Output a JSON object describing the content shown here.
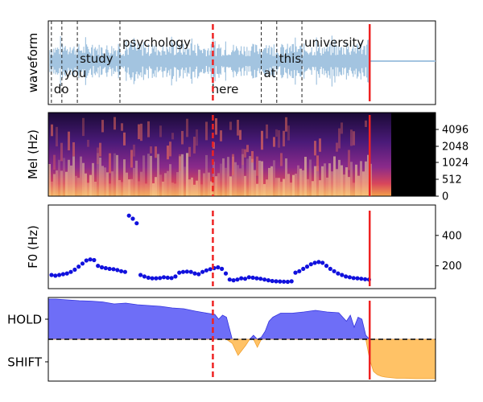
{
  "chart_data": [
    {
      "panel": "waveform",
      "type": "area",
      "ylabel": "waveform",
      "xlim": [
        0,
        100
      ],
      "speech_end": 83,
      "words": [
        {
          "text": "do",
          "start": 0.8,
          "row": "low"
        },
        {
          "text": "you",
          "start": 3.5,
          "row": "mid"
        },
        {
          "text": "study",
          "start": 7.5,
          "row": "mid-high"
        },
        {
          "text": "psychology",
          "start": 18.5,
          "row": "high"
        },
        {
          "text": "here",
          "start": 41.5,
          "row": "low"
        },
        {
          "text": "at",
          "start": 55.0,
          "row": "mid"
        },
        {
          "text": "this",
          "start": 59.0,
          "row": "mid-high"
        },
        {
          "text": "university",
          "start": 65.5,
          "row": "high"
        }
      ],
      "word_boundaries": [
        0.8,
        3.5,
        7.5,
        18.5,
        55.0,
        59.0,
        65.5
      ]
    },
    {
      "panel": "mel",
      "type": "heatmap",
      "ylabel": "Mel (Hz)",
      "yticks": [
        "0",
        "512",
        "1024",
        "2048",
        "4096"
      ],
      "xlim": [
        0,
        100
      ],
      "speech_end": 83
    },
    {
      "panel": "f0",
      "type": "scatter",
      "ylabel": "F0 (Hz)",
      "yticks": [
        200,
        400
      ],
      "ylim": [
        50,
        600
      ],
      "x": [
        0,
        1,
        2,
        3,
        4,
        5,
        6,
        7,
        8,
        9,
        10,
        11,
        12,
        13,
        14,
        15,
        16,
        17,
        18,
        19,
        20,
        21,
        22,
        23,
        24,
        25,
        26,
        27,
        28,
        29,
        30,
        31,
        32,
        33,
        34,
        35,
        36,
        37,
        38,
        39,
        40,
        41,
        42,
        43,
        44,
        45,
        46,
        47,
        48,
        49,
        50,
        51,
        52,
        53,
        54,
        55,
        56,
        57,
        58,
        59,
        60,
        61,
        62,
        63,
        64,
        65,
        66,
        67,
        68,
        69,
        70,
        71,
        72,
        73,
        74,
        75,
        76,
        77,
        78,
        79,
        80,
        81,
        82
      ],
      "y": [
        140,
        135,
        140,
        145,
        150,
        160,
        175,
        195,
        215,
        235,
        242,
        238,
        200,
        190,
        185,
        180,
        178,
        172,
        165,
        160,
        530,
        510,
        480,
        140,
        130,
        122,
        118,
        118,
        120,
        125,
        122,
        120,
        130,
        155,
        160,
        162,
        160,
        150,
        145,
        160,
        170,
        178,
        185,
        190,
        180,
        150,
        110,
        105,
        110,
        118,
        115,
        125,
        122,
        118,
        115,
        110,
        105,
        100,
        98,
        97,
        96,
        95,
        98,
        155,
        165,
        180,
        195,
        210,
        220,
        225,
        220,
        200,
        180,
        165,
        150,
        140,
        130,
        125,
        120,
        118,
        115,
        112,
        110
      ],
      "segments": [
        [
          0,
          12
        ],
        [
          12,
          20
        ],
        [
          20,
          23
        ],
        [
          23,
          33
        ],
        [
          33,
          39
        ],
        [
          39,
          46
        ],
        [
          46,
          50
        ],
        [
          50,
          62
        ],
        [
          62,
          83
        ]
      ]
    },
    {
      "panel": "turn",
      "type": "area",
      "yticks": [
        "HOLD",
        "SHIFT"
      ],
      "xlim": [
        0,
        100
      ],
      "hold_color": "#6666f7",
      "shift_color": "#ffc266",
      "x": [
        0,
        2,
        5,
        8,
        11,
        14,
        17,
        20,
        23,
        26,
        29,
        32,
        35,
        38,
        41,
        43,
        44,
        45,
        46,
        47.5,
        49,
        51,
        52,
        53,
        54,
        55,
        56,
        57,
        58,
        60,
        63,
        66,
        69,
        72,
        75,
        77,
        78,
        79,
        80,
        81,
        82,
        83,
        84,
        85,
        86,
        87,
        88,
        89,
        90,
        92,
        95,
        98,
        100
      ],
      "y": [
        1.0,
        1.0,
        0.98,
        0.96,
        0.95,
        0.93,
        0.88,
        0.9,
        0.86,
        0.84,
        0.82,
        0.78,
        0.76,
        0.7,
        0.65,
        0.62,
        0.5,
        0.6,
        0.55,
        -0.1,
        -0.4,
        -0.15,
        0.0,
        0.1,
        -0.2,
        0.05,
        0.2,
        0.45,
        0.55,
        0.65,
        0.65,
        0.68,
        0.72,
        0.68,
        0.66,
        0.45,
        0.6,
        0.3,
        0.55,
        0.5,
        0.1,
        -0.5,
        -0.8,
        -0.88,
        -0.92,
        -0.94,
        -0.95,
        -0.96,
        -0.97,
        -0.97,
        -0.98,
        -0.98,
        -0.98
      ]
    }
  ],
  "markers": {
    "red_dashed": 42.5,
    "red_solid": 83.0,
    "color": "#ee2222"
  }
}
